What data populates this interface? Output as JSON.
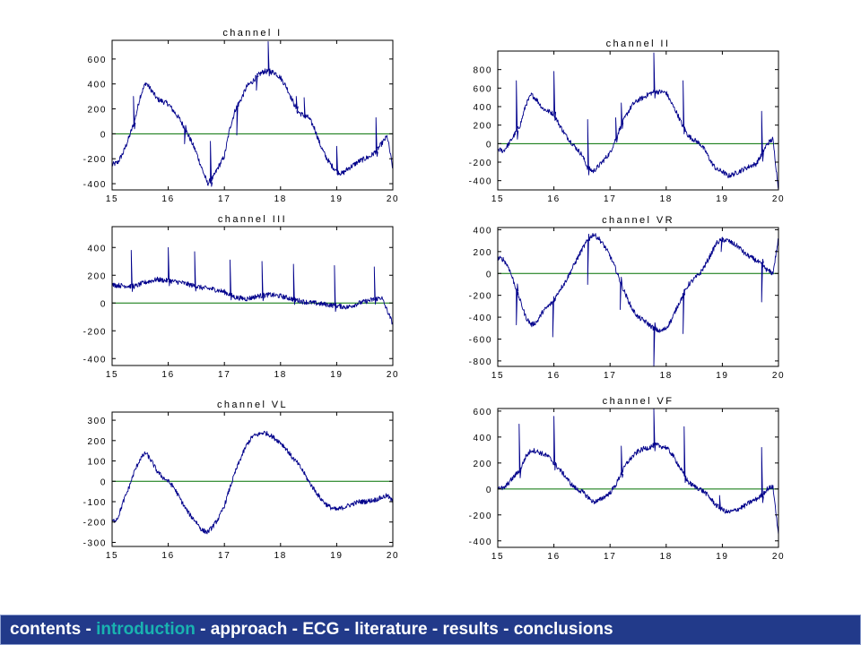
{
  "colors": {
    "trace": "#00008b",
    "baseline": "#007000",
    "nav_background": "#223a8a",
    "nav_text": "#ffffff",
    "nav_active": "#19b3b0"
  },
  "nav": {
    "items": [
      {
        "label": "contents",
        "active": false
      },
      {
        "label": "introduction",
        "active": true
      },
      {
        "label": "approach",
        "active": false
      },
      {
        "label": "ECG",
        "active": false
      },
      {
        "label": "literature",
        "active": false
      },
      {
        "label": "results",
        "active": false
      },
      {
        "label": "conclusions",
        "active": false
      }
    ],
    "separator": " - "
  },
  "chart_data": [
    {
      "type": "line",
      "title": "channel I",
      "xlim": [
        15,
        20
      ],
      "ylim": [
        -450,
        750
      ],
      "xticks": [
        "15",
        "16",
        "17",
        "18",
        "19",
        "20"
      ],
      "yticks": [
        -400,
        -200,
        0,
        200,
        400,
        600
      ],
      "baseline": 0,
      "series": [
        {
          "x": [
            15.0,
            15.1,
            15.2,
            15.3,
            15.4,
            15.5,
            15.6,
            15.7,
            15.8,
            15.9,
            16.0,
            16.1,
            16.2,
            16.3,
            16.4,
            16.5,
            16.6,
            16.7,
            16.8,
            16.9,
            17.0,
            17.1,
            17.2,
            17.3,
            17.4,
            17.5,
            17.6,
            17.7,
            17.8,
            17.9,
            18.0,
            18.1,
            18.2,
            18.3,
            18.4,
            18.5,
            18.6,
            18.7,
            18.8,
            18.9,
            19.0,
            19.1,
            19.2,
            19.3,
            19.4,
            19.5,
            19.6,
            19.7,
            19.8,
            19.9,
            20.0
          ],
          "y": [
            -250,
            -230,
            -150,
            -30,
            100,
            300,
            410,
            350,
            280,
            260,
            240,
            180,
            120,
            40,
            -50,
            -150,
            -280,
            -400,
            -350,
            -260,
            -180,
            50,
            200,
            280,
            380,
            420,
            470,
            500,
            500,
            490,
            450,
            380,
            280,
            180,
            150,
            130,
            50,
            -80,
            -180,
            -250,
            -300,
            -320,
            -280,
            -250,
            -220,
            -200,
            -180,
            -140,
            -80,
            -20,
            -280
          ]
        }
      ],
      "spikes": [
        {
          "x": 15.38,
          "y": 300
        },
        {
          "x": 16.29,
          "y": -80
        },
        {
          "x": 16.75,
          "y": -60
        },
        {
          "x": 17.22,
          "y": -10
        },
        {
          "x": 17.57,
          "y": 350
        },
        {
          "x": 17.78,
          "y": 740
        },
        {
          "x": 18.28,
          "y": 300
        },
        {
          "x": 18.42,
          "y": 290
        },
        {
          "x": 19.0,
          "y": -100
        },
        {
          "x": 19.7,
          "y": 130
        }
      ]
    },
    {
      "type": "line",
      "title": "channel II",
      "xlim": [
        15,
        20
      ],
      "ylim": [
        -500,
        1000
      ],
      "xticks": [
        "15",
        "16",
        "17",
        "18",
        "19",
        "20"
      ],
      "yticks": [
        -400,
        -200,
        0,
        200,
        400,
        600,
        800
      ],
      "baseline": 0,
      "series": [
        {
          "x": [
            15.0,
            15.1,
            15.2,
            15.3,
            15.4,
            15.5,
            15.6,
            15.7,
            15.8,
            15.9,
            16.0,
            16.1,
            16.2,
            16.3,
            16.4,
            16.5,
            16.6,
            16.7,
            16.8,
            16.9,
            17.0,
            17.1,
            17.2,
            17.3,
            17.4,
            17.5,
            17.6,
            17.7,
            17.8,
            17.9,
            18.0,
            18.1,
            18.2,
            18.3,
            18.4,
            18.5,
            18.6,
            18.7,
            18.8,
            18.9,
            19.0,
            19.1,
            19.2,
            19.3,
            19.4,
            19.5,
            19.6,
            19.7,
            19.8,
            19.9,
            20.0
          ],
          "y": [
            -60,
            -80,
            0,
            100,
            200,
            420,
            530,
            470,
            380,
            350,
            320,
            200,
            100,
            20,
            -50,
            -120,
            -260,
            -300,
            -240,
            -170,
            -100,
            50,
            200,
            320,
            420,
            470,
            500,
            540,
            560,
            560,
            550,
            430,
            320,
            180,
            80,
            40,
            0,
            -80,
            -200,
            -280,
            -300,
            -350,
            -330,
            -300,
            -270,
            -240,
            -220,
            -120,
            0,
            50,
            -500
          ]
        }
      ],
      "spikes": [
        {
          "x": 15.33,
          "y": 680
        },
        {
          "x": 16.0,
          "y": 780
        },
        {
          "x": 16.6,
          "y": 260
        },
        {
          "x": 17.1,
          "y": 280
        },
        {
          "x": 17.2,
          "y": 440
        },
        {
          "x": 17.78,
          "y": 980
        },
        {
          "x": 18.3,
          "y": 680
        },
        {
          "x": 19.7,
          "y": 350
        }
      ]
    },
    {
      "type": "line",
      "title": "channel III",
      "xlim": [
        15,
        20
      ],
      "ylim": [
        -450,
        550
      ],
      "xticks": [
        "15",
        "16",
        "17",
        "18",
        "19",
        "20"
      ],
      "yticks": [
        -400,
        -200,
        0,
        200,
        400
      ],
      "baseline": 0,
      "series": [
        {
          "x": [
            15.0,
            15.2,
            15.4,
            15.6,
            15.8,
            16.0,
            16.2,
            16.4,
            16.6,
            16.8,
            17.0,
            17.2,
            17.4,
            17.6,
            17.8,
            18.0,
            18.2,
            18.4,
            18.6,
            18.8,
            19.0,
            19.2,
            19.4,
            19.6,
            19.8,
            20.0
          ],
          "y": [
            130,
            125,
            120,
            150,
            170,
            160,
            150,
            130,
            110,
            100,
            80,
            40,
            30,
            50,
            60,
            50,
            30,
            10,
            0,
            -10,
            -20,
            -30,
            0,
            20,
            40,
            -150
          ]
        }
      ],
      "spikes": [
        {
          "x": 15.34,
          "y": 380
        },
        {
          "x": 16.0,
          "y": 400
        },
        {
          "x": 16.47,
          "y": 370
        },
        {
          "x": 17.1,
          "y": 310
        },
        {
          "x": 17.67,
          "y": 300
        },
        {
          "x": 18.23,
          "y": 280
        },
        {
          "x": 18.96,
          "y": 270
        },
        {
          "x": 19.67,
          "y": 260
        }
      ]
    },
    {
      "type": "line",
      "title": "channel VR",
      "xlim": [
        15,
        20
      ],
      "ylim": [
        -850,
        420
      ],
      "xticks": [
        "15",
        "16",
        "17",
        "18",
        "19",
        "20"
      ],
      "yticks": [
        -800,
        -600,
        -400,
        -200,
        0,
        200,
        400
      ],
      "baseline": 0,
      "series": [
        {
          "x": [
            15.0,
            15.1,
            15.2,
            15.3,
            15.4,
            15.5,
            15.6,
            15.7,
            15.8,
            15.9,
            16.0,
            16.1,
            16.2,
            16.3,
            16.4,
            16.5,
            16.6,
            16.7,
            16.8,
            16.9,
            17.0,
            17.1,
            17.2,
            17.3,
            17.4,
            17.5,
            17.6,
            17.7,
            17.8,
            17.9,
            18.0,
            18.1,
            18.2,
            18.3,
            18.4,
            18.5,
            18.6,
            18.7,
            18.8,
            18.9,
            19.0,
            19.1,
            19.2,
            19.3,
            19.4,
            19.5,
            19.6,
            19.7,
            19.8,
            19.9,
            20.0
          ],
          "y": [
            140,
            130,
            50,
            -100,
            -250,
            -400,
            -470,
            -440,
            -350,
            -300,
            -250,
            -150,
            -80,
            20,
            120,
            220,
            300,
            360,
            320,
            250,
            160,
            40,
            -100,
            -220,
            -330,
            -400,
            -430,
            -470,
            -510,
            -530,
            -500,
            -420,
            -300,
            -200,
            -100,
            -50,
            0,
            80,
            180,
            280,
            310,
            300,
            270,
            240,
            180,
            150,
            120,
            80,
            30,
            0,
            320
          ]
        }
      ],
      "spikes": [
        {
          "x": 15.33,
          "y": -470
        },
        {
          "x": 15.98,
          "y": -580
        },
        {
          "x": 16.6,
          "y": -100
        },
        {
          "x": 17.18,
          "y": -330
        },
        {
          "x": 17.78,
          "y": -850
        },
        {
          "x": 18.3,
          "y": -550
        },
        {
          "x": 18.98,
          "y": 200
        },
        {
          "x": 19.7,
          "y": -260
        }
      ]
    },
    {
      "type": "line",
      "title": "channel VL",
      "xlim": [
        15,
        20
      ],
      "ylim": [
        -320,
        340
      ],
      "xticks": [
        "15",
        "16",
        "17",
        "18",
        "19",
        "20"
      ],
      "yticks": [
        -300,
        -200,
        -100,
        0,
        100,
        200,
        300
      ],
      "baseline": 0,
      "series": [
        {
          "x": [
            15.0,
            15.1,
            15.2,
            15.3,
            15.4,
            15.5,
            15.6,
            15.7,
            15.8,
            15.9,
            16.0,
            16.1,
            16.2,
            16.3,
            16.4,
            16.5,
            16.6,
            16.7,
            16.8,
            16.9,
            17.0,
            17.1,
            17.2,
            17.3,
            17.4,
            17.5,
            17.6,
            17.7,
            17.8,
            17.9,
            18.0,
            18.1,
            18.2,
            18.3,
            18.4,
            18.5,
            18.6,
            18.7,
            18.8,
            18.9,
            19.0,
            19.1,
            19.2,
            19.3,
            19.4,
            19.5,
            19.6,
            19.7,
            19.8,
            19.9,
            20.0
          ],
          "y": [
            -200,
            -180,
            -100,
            -30,
            50,
            110,
            140,
            100,
            50,
            20,
            0,
            -30,
            -80,
            -130,
            -170,
            -200,
            -240,
            -250,
            -220,
            -180,
            -120,
            -30,
            50,
            120,
            180,
            220,
            230,
            240,
            230,
            210,
            190,
            160,
            120,
            90,
            50,
            0,
            -40,
            -80,
            -110,
            -130,
            -140,
            -130,
            -120,
            -110,
            -100,
            -100,
            -95,
            -90,
            -80,
            -70,
            -100
          ]
        }
      ],
      "spikes": []
    },
    {
      "type": "line",
      "title": "channel VF",
      "xlim": [
        15,
        20
      ],
      "ylim": [
        -450,
        620
      ],
      "xticks": [
        "15",
        "16",
        "17",
        "18",
        "19",
        "20"
      ],
      "yticks": [
        -400,
        -200,
        0,
        200,
        400,
        600
      ],
      "baseline": 0,
      "series": [
        {
          "x": [
            15.0,
            15.1,
            15.2,
            15.3,
            15.4,
            15.5,
            15.6,
            15.7,
            15.8,
            15.9,
            16.0,
            16.1,
            16.2,
            16.3,
            16.4,
            16.5,
            16.6,
            16.7,
            16.8,
            16.9,
            17.0,
            17.1,
            17.2,
            17.3,
            17.4,
            17.5,
            17.6,
            17.7,
            17.8,
            17.9,
            18.0,
            18.1,
            18.2,
            18.3,
            18.4,
            18.5,
            18.6,
            18.7,
            18.8,
            18.9,
            19.0,
            19.1,
            19.2,
            19.3,
            19.4,
            19.5,
            19.6,
            19.7,
            19.8,
            19.9,
            20.0
          ],
          "y": [
            20,
            0,
            50,
            100,
            150,
            250,
            300,
            290,
            270,
            250,
            200,
            150,
            100,
            40,
            0,
            -20,
            -60,
            -100,
            -90,
            -60,
            -30,
            30,
            120,
            200,
            250,
            290,
            310,
            320,
            340,
            330,
            320,
            270,
            200,
            120,
            50,
            20,
            0,
            -30,
            -80,
            -130,
            -160,
            -180,
            -170,
            -150,
            -130,
            -100,
            -80,
            -50,
            0,
            20,
            -350
          ]
        }
      ],
      "spikes": [
        {
          "x": 15.38,
          "y": 500
        },
        {
          "x": 16.0,
          "y": 560
        },
        {
          "x": 16.6,
          "y": -60
        },
        {
          "x": 17.2,
          "y": 330
        },
        {
          "x": 17.78,
          "y": 620
        },
        {
          "x": 18.32,
          "y": 480
        },
        {
          "x": 18.95,
          "y": -50
        },
        {
          "x": 19.7,
          "y": 320
        }
      ]
    }
  ]
}
